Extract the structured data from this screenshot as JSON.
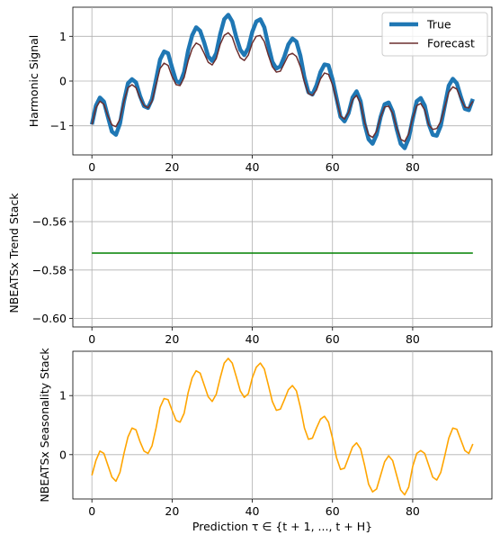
{
  "chart_data": [
    {
      "type": "line",
      "ylabel": "Harmonic Signal",
      "xlabel": "",
      "xlim": [
        -4.75,
        99.75
      ],
      "ylim": [
        -1.65,
        1.65
      ],
      "xticks": [
        0,
        20,
        40,
        60,
        80
      ],
      "yticks": [
        -1,
        0,
        1
      ],
      "grid": true,
      "legend": "top-right",
      "series": [
        {
          "name": "True",
          "color": "#1f77b4",
          "values": [
            -0.97,
            -0.55,
            -0.37,
            -0.46,
            -0.8,
            -1.13,
            -1.2,
            -0.95,
            -0.45,
            -0.05,
            0.04,
            -0.03,
            -0.33,
            -0.56,
            -0.6,
            -0.4,
            0.03,
            0.48,
            0.66,
            0.62,
            0.3,
            0.0,
            -0.04,
            0.2,
            0.68,
            1.02,
            1.2,
            1.12,
            0.86,
            0.55,
            0.45,
            0.62,
            1.05,
            1.38,
            1.48,
            1.33,
            0.98,
            0.7,
            0.58,
            0.74,
            1.1,
            1.33,
            1.38,
            1.2,
            0.8,
            0.43,
            0.28,
            0.33,
            0.55,
            0.82,
            0.95,
            0.88,
            0.56,
            0.08,
            -0.25,
            -0.3,
            -0.1,
            0.2,
            0.37,
            0.35,
            0.04,
            -0.38,
            -0.8,
            -0.9,
            -0.72,
            -0.37,
            -0.23,
            -0.45,
            -0.96,
            -1.3,
            -1.4,
            -1.2,
            -0.8,
            -0.52,
            -0.48,
            -0.68,
            -1.07,
            -1.4,
            -1.5,
            -1.28,
            -0.85,
            -0.45,
            -0.38,
            -0.55,
            -0.96,
            -1.2,
            -1.22,
            -1.0,
            -0.55,
            -0.1,
            0.05,
            -0.05,
            -0.35,
            -0.62,
            -0.65,
            -0.4
          ]
        },
        {
          "name": "Forecast",
          "color": "#6b2e2e",
          "values": [
            -0.97,
            -0.6,
            -0.45,
            -0.52,
            -0.78,
            -0.98,
            -1.02,
            -0.85,
            -0.45,
            -0.15,
            -0.08,
            -0.15,
            -0.38,
            -0.55,
            -0.6,
            -0.45,
            -0.08,
            0.28,
            0.4,
            0.35,
            0.1,
            -0.08,
            -0.1,
            0.08,
            0.45,
            0.72,
            0.85,
            0.8,
            0.62,
            0.42,
            0.36,
            0.5,
            0.82,
            1.02,
            1.08,
            0.98,
            0.72,
            0.52,
            0.46,
            0.58,
            0.85,
            1.0,
            1.02,
            0.88,
            0.58,
            0.32,
            0.2,
            0.22,
            0.4,
            0.58,
            0.62,
            0.55,
            0.32,
            -0.02,
            -0.28,
            -0.32,
            -0.2,
            0.05,
            0.18,
            0.15,
            -0.08,
            -0.42,
            -0.78,
            -0.85,
            -0.7,
            -0.42,
            -0.32,
            -0.5,
            -0.92,
            -1.2,
            -1.26,
            -1.12,
            -0.8,
            -0.58,
            -0.56,
            -0.72,
            -1.05,
            -1.3,
            -1.35,
            -1.18,
            -0.82,
            -0.55,
            -0.5,
            -0.65,
            -0.98,
            -1.08,
            -1.06,
            -0.9,
            -0.58,
            -0.25,
            -0.13,
            -0.18,
            -0.4,
            -0.58,
            -0.6,
            -0.45
          ]
        }
      ]
    },
    {
      "type": "line",
      "ylabel": "NBEATSx Trend Stack",
      "xlabel": "",
      "xlim": [
        -4.75,
        99.75
      ],
      "ylim": [
        -0.6035,
        -0.5425
      ],
      "xticks": [
        0,
        20,
        40,
        60,
        80
      ],
      "yticks": [
        -0.6,
        -0.58,
        -0.56
      ],
      "ytick_labels": [
        "−0.60",
        "−0.58",
        "−0.56"
      ],
      "grid": true,
      "series": [
        {
          "color": "#008000",
          "x": [
            0,
            95
          ],
          "values": [
            -0.573,
            -0.573
          ]
        }
      ]
    },
    {
      "type": "line",
      "ylabel": "NBEATSx Seasonality Stack",
      "xlabel": "Prediction τ ∈ {t + 1, ..., t + H}",
      "xlim": [
        -4.75,
        99.75
      ],
      "ylim": [
        -0.75,
        1.75
      ],
      "xticks": [
        0,
        20,
        40,
        60,
        80
      ],
      "yticks": [
        0,
        1
      ],
      "grid": true,
      "series": [
        {
          "color": "#ffa500",
          "values": [
            -0.35,
            -0.1,
            0.06,
            0.02,
            -0.18,
            -0.38,
            -0.45,
            -0.3,
            0.02,
            0.3,
            0.45,
            0.42,
            0.22,
            0.06,
            0.02,
            0.15,
            0.45,
            0.8,
            0.95,
            0.93,
            0.75,
            0.58,
            0.55,
            0.7,
            1.05,
            1.3,
            1.42,
            1.38,
            1.18,
            0.98,
            0.9,
            1.02,
            1.3,
            1.55,
            1.63,
            1.55,
            1.32,
            1.08,
            0.97,
            1.03,
            1.3,
            1.48,
            1.55,
            1.45,
            1.18,
            0.9,
            0.75,
            0.77,
            0.93,
            1.1,
            1.17,
            1.08,
            0.8,
            0.45,
            0.26,
            0.28,
            0.45,
            0.6,
            0.65,
            0.55,
            0.28,
            -0.05,
            -0.25,
            -0.23,
            -0.05,
            0.13,
            0.2,
            0.1,
            -0.18,
            -0.5,
            -0.63,
            -0.58,
            -0.35,
            -0.12,
            -0.02,
            -0.1,
            -0.35,
            -0.6,
            -0.68,
            -0.55,
            -0.2,
            0.02,
            0.07,
            0.02,
            -0.18,
            -0.38,
            -0.43,
            -0.3,
            -0.02,
            0.28,
            0.45,
            0.43,
            0.25,
            0.07,
            0.02,
            0.18
          ]
        }
      ]
    }
  ]
}
